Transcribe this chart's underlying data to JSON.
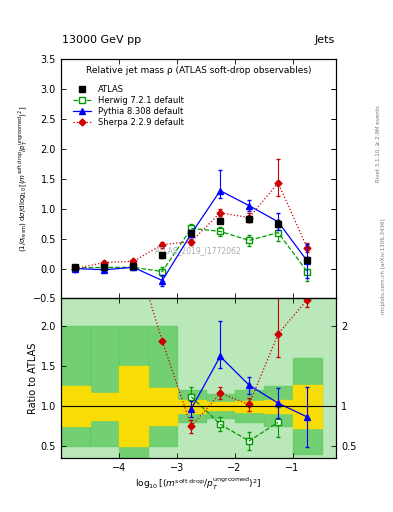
{
  "title_top": "13000 GeV pp",
  "title_right": "Jets",
  "plot_title": "Relative jet mass ρ (ATLAS soft-drop observables)",
  "watermark": "ATLAS_2019_I1772062",
  "right_label_top": "Rivet 3.1.10, ≥ 2.9M events",
  "right_label_bot": "mcplots.cern.ch [arXiv:1306.3436]",
  "xlabel": "log$_{10}$[(m$^{soft drop}$/p$_T^{ungroomed}$)$^2$]",
  "ylabel_main": "(1/σ$_{resm}$) dσ/d log$_{10}$[(m$^{soft drop}$/p$_T^{ungroomed}$)$^2$]",
  "ylabel_ratio": "Ratio to ATLAS",
  "xlim": [
    -5.0,
    -0.25
  ],
  "ylim_main": [
    -0.5,
    3.5
  ],
  "ylim_ratio": [
    0.35,
    2.35
  ],
  "x_centers": [
    -4.75,
    -4.25,
    -3.75,
    -3.25,
    -2.75,
    -2.25,
    -1.75,
    -1.25,
    -0.75
  ],
  "y_atlas": [
    0.02,
    0.02,
    0.04,
    0.22,
    0.6,
    0.8,
    0.83,
    0.75,
    0.15
  ],
  "ye_atlas": [
    0.005,
    0.005,
    0.015,
    0.04,
    0.04,
    0.04,
    0.05,
    0.06,
    0.04
  ],
  "y_herwig": [
    0.01,
    0.02,
    0.02,
    -0.05,
    0.67,
    0.62,
    0.47,
    0.6,
    -0.05
  ],
  "ye_herwig": [
    0.005,
    0.005,
    0.01,
    0.08,
    0.07,
    0.07,
    0.09,
    0.14,
    0.15
  ],
  "y_pythia": [
    0.0,
    -0.02,
    0.02,
    -0.2,
    0.58,
    1.3,
    1.05,
    0.78,
    0.13
  ],
  "ye_pythia_lo": [
    0.005,
    0.005,
    0.015,
    0.09,
    0.06,
    0.12,
    0.09,
    0.14,
    0.28
  ],
  "ye_pythia_hi": [
    0.005,
    0.005,
    0.015,
    0.09,
    0.06,
    0.35,
    0.09,
    0.14,
    0.28
  ],
  "y_sherpa": [
    0.0,
    0.1,
    0.12,
    0.4,
    0.45,
    0.93,
    0.85,
    1.43,
    0.35
  ],
  "ye_sherpa_lo": [
    0.01,
    0.02,
    0.02,
    0.05,
    0.05,
    0.06,
    0.07,
    0.22,
    0.07
  ],
  "ye_sherpa_hi": [
    0.01,
    0.02,
    0.02,
    0.05,
    0.05,
    0.06,
    0.07,
    0.4,
    0.07
  ],
  "ratio_her": [
    null,
    null,
    null,
    null,
    1.12,
    0.775,
    0.566,
    0.8,
    null
  ],
  "ratio_pyt": [
    null,
    null,
    null,
    null,
    0.967,
    1.625,
    1.265,
    1.04,
    0.867
  ],
  "ratio_she": [
    null,
    5.0,
    3.0,
    1.818,
    0.75,
    1.163,
    1.024,
    1.907,
    2.333
  ],
  "yerr_ratio_her": [
    null,
    null,
    null,
    null,
    0.117,
    0.0875,
    0.108,
    0.187,
    null
  ],
  "yerr_ratio_pyt_lo": [
    null,
    null,
    null,
    null,
    0.1,
    0.15,
    0.108,
    0.187,
    0.373
  ],
  "yerr_ratio_pyt_hi": [
    null,
    null,
    null,
    null,
    0.1,
    0.4375,
    0.108,
    0.187,
    0.373
  ],
  "yerr_ratio_she_lo": [
    null,
    null,
    null,
    null,
    0.083,
    0.075,
    0.084,
    0.293,
    0.093
  ],
  "yerr_ratio_she_hi": [
    null,
    null,
    null,
    null,
    0.083,
    0.075,
    0.084,
    0.533,
    0.093
  ],
  "atlas_color": "#000000",
  "herwig_color": "#009900",
  "pythia_color": "#0000ff",
  "sherpa_color": "#cc0000",
  "green_band_lo": [
    0.5,
    0.5,
    0.25,
    0.5,
    0.8,
    0.85,
    0.8,
    0.75,
    0.4
  ],
  "green_band_hi": [
    2.0,
    2.0,
    2.0,
    2.0,
    1.2,
    1.15,
    1.2,
    1.25,
    1.6
  ],
  "yellow_band_lo": [
    0.75,
    0.83,
    0.5,
    0.77,
    0.92,
    0.95,
    0.93,
    0.92,
    0.73
  ],
  "yellow_band_hi": [
    1.25,
    1.17,
    1.5,
    1.23,
    1.08,
    1.05,
    1.07,
    1.08,
    1.27
  ]
}
